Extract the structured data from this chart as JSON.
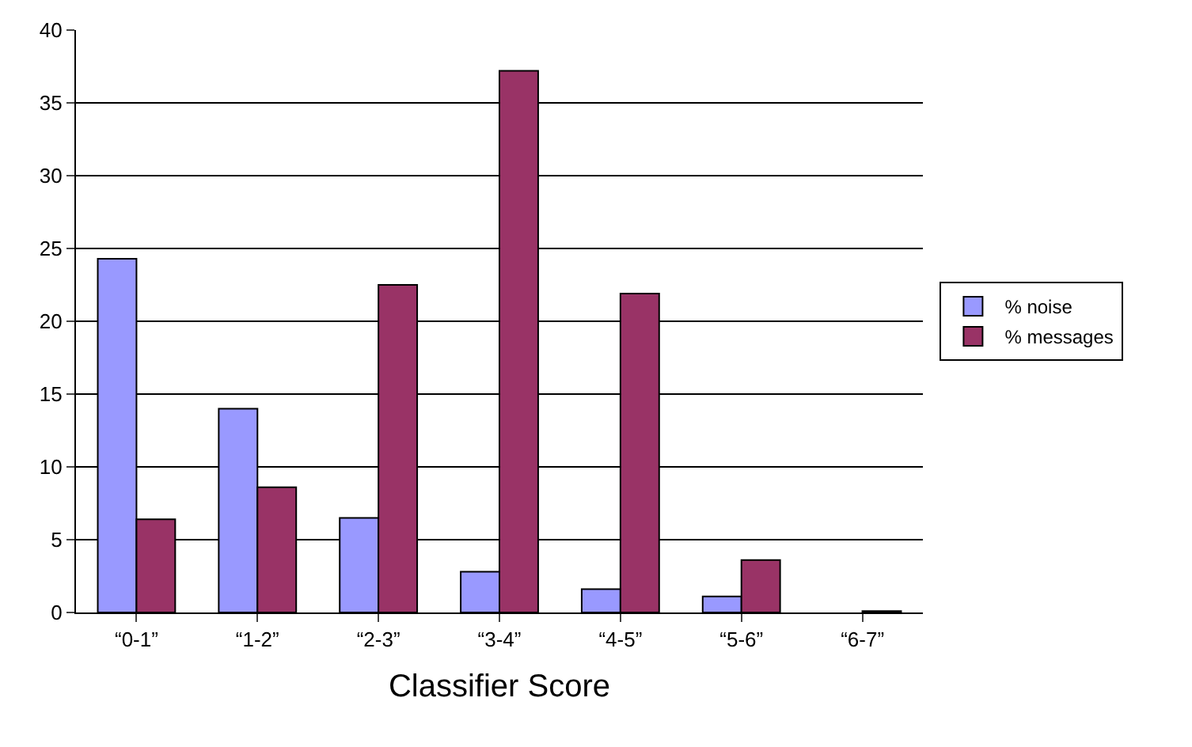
{
  "chart_data": {
    "type": "bar",
    "xlabel": "Classifier Score",
    "categories": [
      "“0-1”",
      "“1-2”",
      "“2-3”",
      "“3-4”",
      "“4-5”",
      "“5-6”",
      "“6-7”"
    ],
    "series": [
      {
        "name": "% noise",
        "color": "#9999ff",
        "values": [
          24.3,
          14.0,
          6.5,
          2.8,
          1.6,
          1.1,
          null
        ]
      },
      {
        "name": "% messages",
        "color": "#993366",
        "values": [
          6.4,
          8.6,
          22.5,
          37.2,
          21.9,
          3.6,
          0.1
        ]
      }
    ],
    "ylim": [
      0,
      40
    ],
    "yticks": [
      0,
      5,
      10,
      15,
      20,
      25,
      30,
      35,
      40
    ],
    "grid": "y",
    "legend": "right"
  }
}
